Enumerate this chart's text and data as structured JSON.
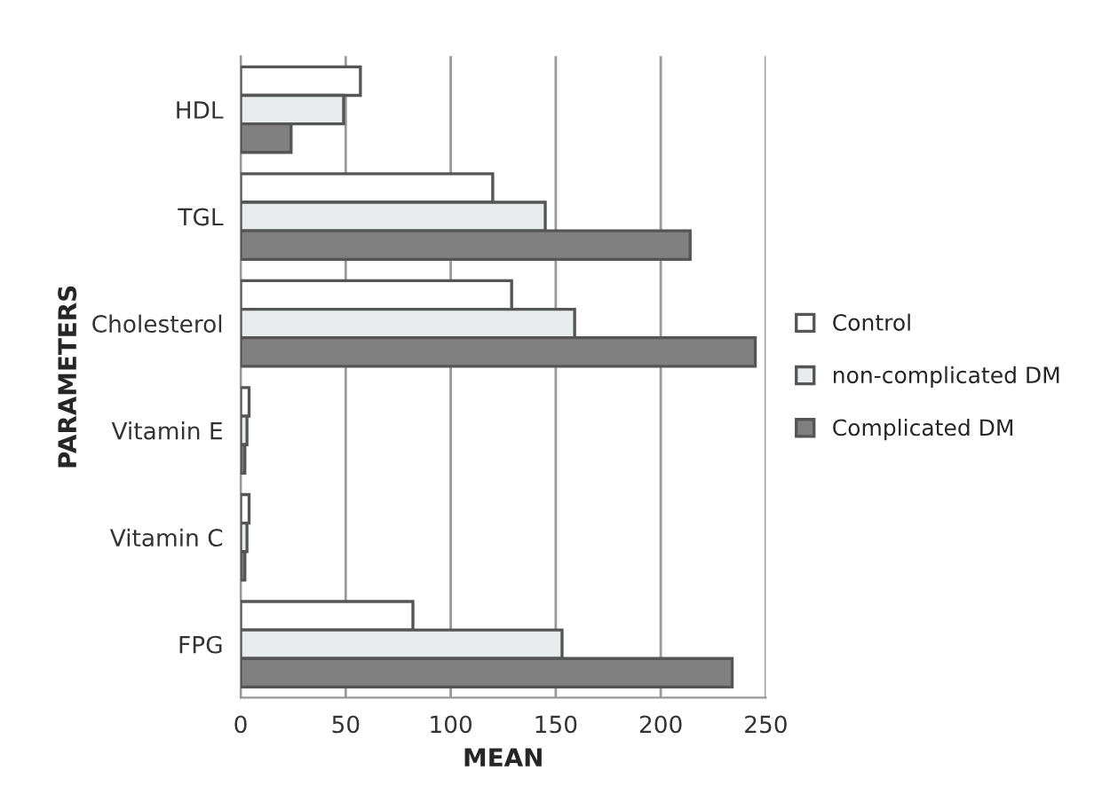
{
  "chart_data": {
    "type": "bar",
    "orientation": "horizontal",
    "xlabel": "MEAN",
    "ylabel": "PARAMETERS",
    "categories": [
      "HDL",
      "TGL",
      "Cholesterol",
      "Vitamin E",
      "Vitamin C",
      "FPG"
    ],
    "series": [
      {
        "name": "Control",
        "color": "#ffffff",
        "values": [
          57,
          120,
          129,
          4,
          4,
          82
        ]
      },
      {
        "name": "non-complicated DM",
        "color": "#e8eced",
        "values": [
          49,
          145,
          159,
          3,
          3,
          153
        ]
      },
      {
        "name": "Complicated DM",
        "color": "#808080",
        "values": [
          24,
          214,
          245,
          2,
          2,
          234
        ]
      }
    ],
    "xlim": [
      0,
      250
    ],
    "xticks": [
      0,
      50,
      100,
      150,
      200,
      250
    ],
    "grid": "x",
    "legend": "right"
  }
}
